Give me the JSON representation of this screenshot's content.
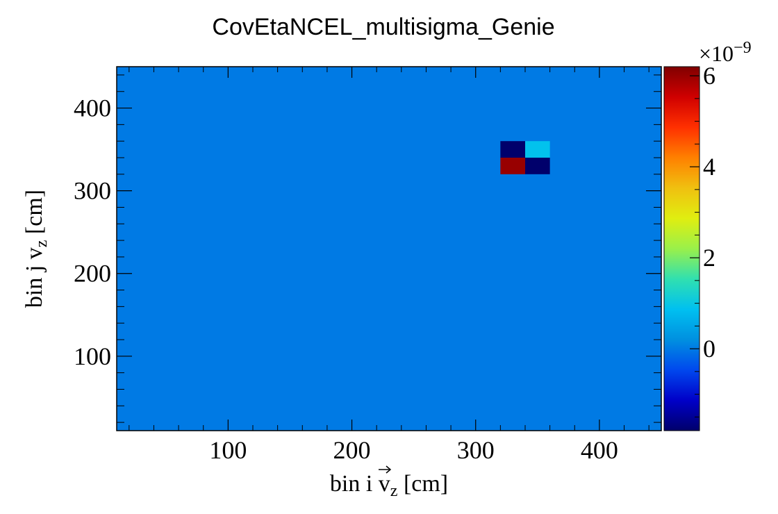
{
  "chart_data": {
    "type": "heatmap",
    "title": "CovEtaNCEL_multisigma_Genie",
    "xlabel": {
      "main": "bin i ",
      "vec": "v",
      "sub": "z",
      "unit": " [cm]"
    },
    "ylabel": {
      "main": "bin j ",
      "vec": "v",
      "sub": "z",
      "unit": " [cm]"
    },
    "xlim": [
      10,
      450
    ],
    "ylim": [
      10,
      450
    ],
    "x_ticks": [
      100,
      200,
      300,
      400
    ],
    "y_ticks": [
      100,
      200,
      300,
      400
    ],
    "x_tick_labels": [
      "100",
      "200",
      "300",
      "400"
    ],
    "y_tick_labels": [
      "100",
      "200",
      "300",
      "400"
    ],
    "background_value": 0,
    "cells": [
      {
        "x0": 320,
        "x1": 340,
        "y0": 340,
        "y1": 360,
        "value": -1.8e-09
      },
      {
        "x0": 340,
        "x1": 360,
        "y0": 340,
        "y1": 360,
        "value": 9e-10
      },
      {
        "x0": 320,
        "x1": 340,
        "y0": 320,
        "y1": 340,
        "value": 6e-09
      },
      {
        "x0": 340,
        "x1": 360,
        "y0": 320,
        "y1": 340,
        "value": -1.8e-09
      }
    ],
    "colorbar": {
      "min": -1.8e-09,
      "max": 6.2e-09,
      "ticks": [
        0,
        2e-09,
        4e-09,
        6e-09
      ],
      "tick_labels": [
        "0",
        "2",
        "4",
        "6"
      ],
      "multiplier_base": "×10",
      "multiplier_exp": "−9",
      "palette": [
        "#00006b",
        "#0000c8",
        "#0048ee",
        "#0090e0",
        "#00c0f0",
        "#30e0b0",
        "#9af04a",
        "#e0ee10",
        "#f0c010",
        "#ff8000",
        "#ff3000",
        "#d00000",
        "#800000"
      ]
    }
  }
}
